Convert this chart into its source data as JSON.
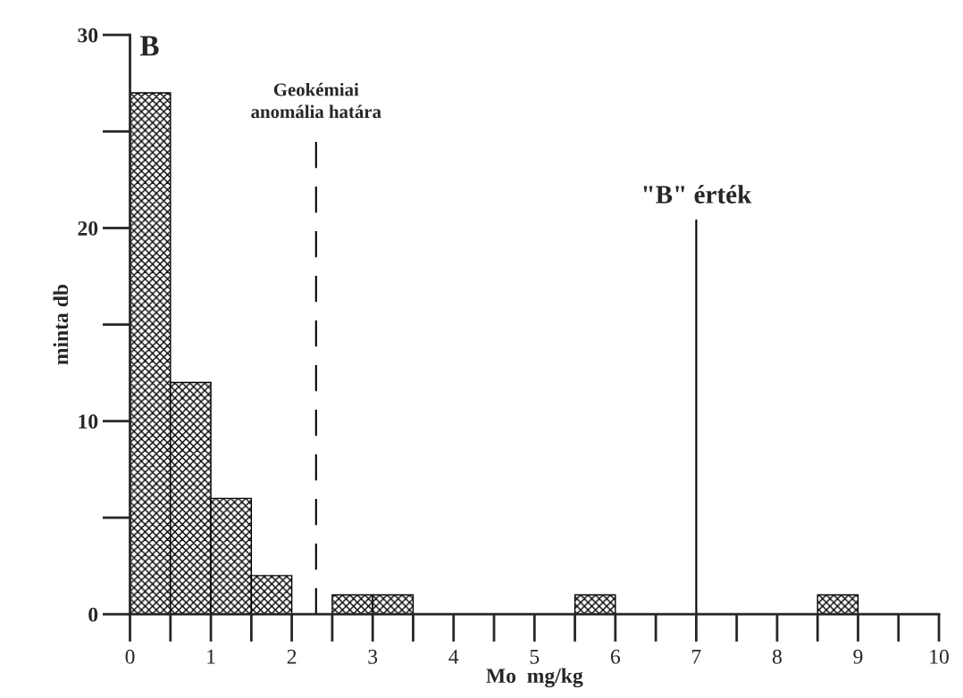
{
  "chart_data": {
    "type": "histogram",
    "title": "B",
    "xlabel": "Mo  mg/kg",
    "ylabel": "minta db",
    "bins": [
      0,
      0.5,
      1,
      1.5,
      2,
      2.5,
      3,
      3.5,
      4,
      4.5,
      5,
      5.5,
      6,
      6.5,
      7,
      7.5,
      8,
      8.5,
      9,
      9.5,
      10
    ],
    "values": [
      27,
      12,
      6,
      2,
      0,
      1,
      1,
      0,
      0,
      0,
      0,
      1,
      0,
      0,
      0,
      0,
      0,
      1,
      0,
      0
    ],
    "color": "#000000",
    "xlim": [
      0,
      10
    ],
    "ylim": [
      0,
      30
    ],
    "xticks": [
      0,
      1,
      2,
      3,
      4,
      5,
      6,
      7,
      8,
      9,
      10
    ],
    "yticks": [
      0,
      10,
      20,
      30
    ],
    "ref_lines": [
      {
        "axis": "x",
        "value": 2.3,
        "label": "Geokémiai\nanomália határa",
        "line_style": "dashed",
        "color": "#000000"
      },
      {
        "axis": "x",
        "value": 7,
        "label": "\"B\" érték",
        "line_style": "solid",
        "color": "#000000"
      }
    ],
    "grid": false,
    "legend": false
  }
}
